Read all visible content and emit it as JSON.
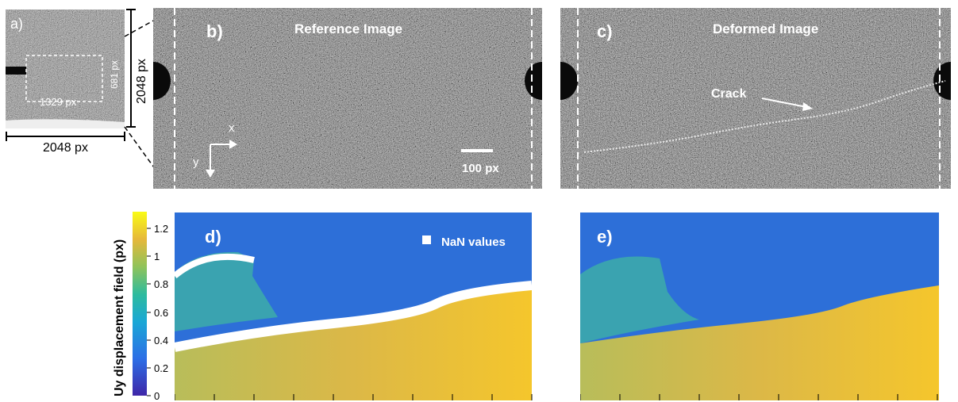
{
  "figure": {
    "panel_a": {
      "label": "a)",
      "width_label": "2048 px",
      "height_label": "2048 px",
      "roi_width_label": "1329 px",
      "roi_height_label": "681 px"
    },
    "panel_b": {
      "label": "b)",
      "title": "Reference Image",
      "scale_bar_label": "100 px",
      "axis_x_label": "x",
      "axis_y_label": "y"
    },
    "panel_c": {
      "label": "c)",
      "title": "Deformed Image",
      "crack_label": "Crack"
    },
    "panel_d": {
      "label": "d)",
      "legend_label": "NaN values"
    },
    "panel_e": {
      "label": "e)"
    },
    "colorbar": {
      "title": "Uy displacement field (px)",
      "ticks": [
        "1.2",
        "1",
        "0.8",
        "0.6",
        "0.4",
        "0.2",
        "0"
      ]
    },
    "colors": {
      "field_high": "#f5c62c",
      "field_low": "#2d6ed6",
      "field_mid": "#3aa3b0",
      "nan": "#ffffff"
    }
  }
}
